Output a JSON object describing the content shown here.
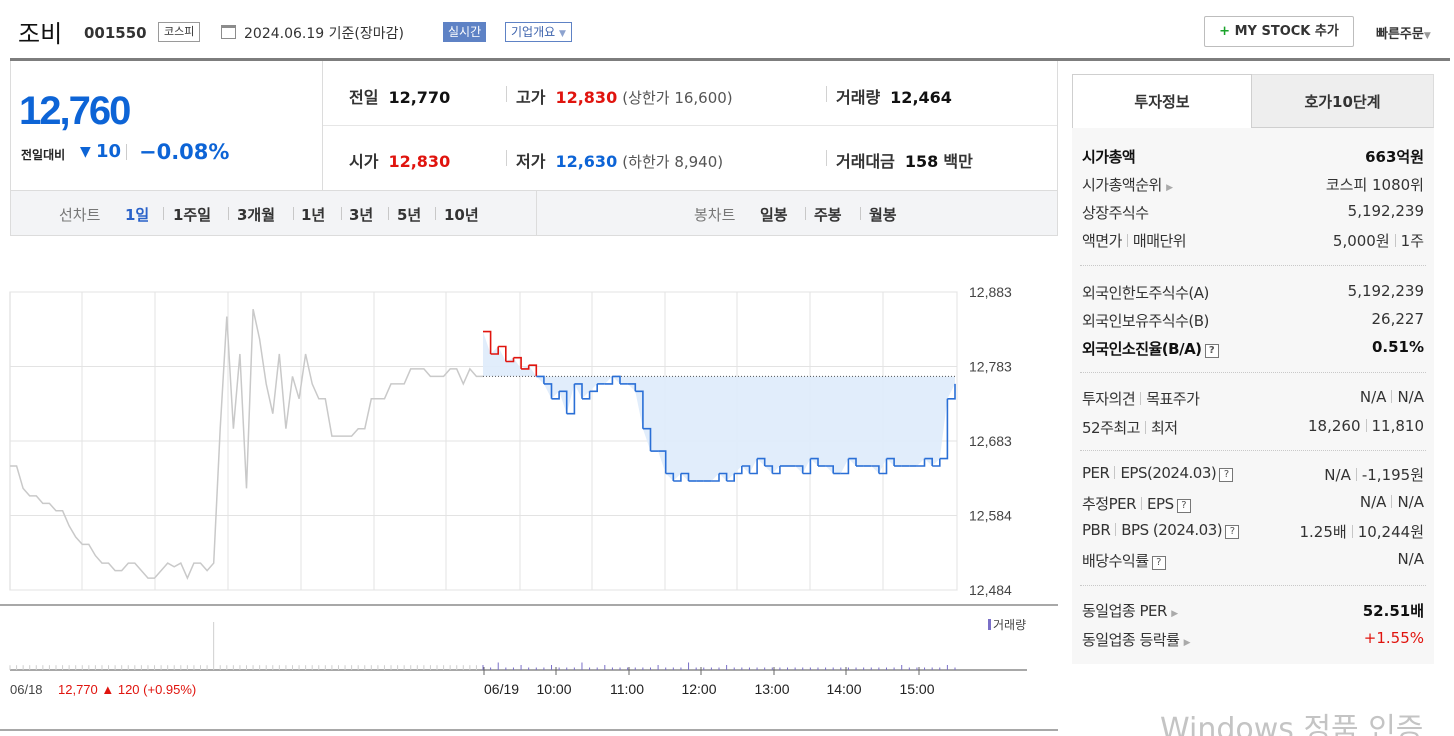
{
  "header": {
    "stock_name": "조비",
    "stock_code": "001550",
    "market_badge": "코스피",
    "date_text": "2024.06.19 기준(장마감)",
    "realtime_badge": "실시간",
    "company_overview": "기업개요",
    "my_stock_plus": "+",
    "my_stock_label": "MY STOCK 추가",
    "quick_order": "빠른주문"
  },
  "summary": {
    "current_price": "12,760",
    "change_label": "전일대비",
    "change_arrow": "▼",
    "change_value": "10",
    "change_percent": "−0.08%",
    "prev_close_label": "전일",
    "prev_close": "12,770",
    "high_label": "고가",
    "high": "12,830",
    "upper_limit": "(상한가 16,600)",
    "volume_label": "거래량",
    "volume": "12,464",
    "open_label": "시가",
    "open": "12,830",
    "low_label": "저가",
    "low": "12,630",
    "lower_limit": "(하한가 8,940)",
    "amount_label": "거래대금",
    "amount": "158",
    "amount_unit": "백만"
  },
  "toolbar": {
    "line_chart_label": "선차트",
    "line_periods": [
      "1일",
      "1주일",
      "3개월",
      "1년",
      "3년",
      "5년",
      "10년"
    ],
    "active_period": "1일",
    "candle_chart_label": "봉차트",
    "candle_periods": [
      "일봉",
      "주봉",
      "월봉"
    ]
  },
  "chart_data": {
    "type": "line",
    "title": "",
    "y_ticks": [
      "12,883",
      "12,783",
      "12,683",
      "12,584",
      "12,484"
    ],
    "ylim": [
      12484,
      12883
    ],
    "prev_close": 12770,
    "x_labels": [
      "06/19",
      "10:00",
      "11:00",
      "12:00",
      "13:00",
      "14:00",
      "15:00"
    ],
    "volume_legend": "거래량",
    "prev_day": {
      "date": "06/18",
      "close": "12,770",
      "arrow": "▲",
      "change": "120",
      "change_pct": "(+0.95%)",
      "series": [
        12650,
        12650,
        12620,
        12610,
        12610,
        12600,
        12600,
        12590,
        12590,
        12570,
        12555,
        12545,
        12545,
        12530,
        12520,
        12520,
        12510,
        12510,
        12520,
        12520,
        12510,
        12500,
        12500,
        12510,
        12520,
        12515,
        12520,
        12500,
        12520,
        12520,
        12510,
        12520,
        12700,
        12850,
        12700,
        12800,
        12620,
        12860,
        12820,
        12760,
        12720,
        12800,
        12700,
        12770,
        12740,
        12800,
        12760,
        12740,
        12740,
        12690,
        12690,
        12690,
        12690,
        12700,
        12700,
        12740,
        12740,
        12740,
        12760,
        12760,
        12760,
        12780,
        12780,
        12780,
        12770,
        12770,
        12770,
        12780,
        12780,
        12760,
        12780,
        12770,
        12770
      ]
    },
    "today": {
      "series": [
        12830,
        12800,
        12810,
        12790,
        12795,
        12780,
        12785,
        12770,
        12760,
        12740,
        12750,
        12720,
        12760,
        12740,
        12750,
        12760,
        12760,
        12770,
        12760,
        12760,
        12750,
        12700,
        12670,
        12670,
        12640,
        12630,
        12640,
        12630,
        12630,
        12630,
        12630,
        12640,
        12630,
        12640,
        12650,
        12640,
        12660,
        12650,
        12640,
        12650,
        12650,
        12650,
        12640,
        12660,
        12650,
        12650,
        12640,
        12640,
        12660,
        12650,
        12650,
        12650,
        12640,
        12660,
        12650,
        12650,
        12650,
        12650,
        12660,
        12650,
        12660,
        12740,
        12760
      ],
      "volume": [
        2,
        1,
        3,
        1,
        1,
        2,
        1,
        1,
        1,
        2,
        1,
        1,
        1,
        3,
        1,
        1,
        2,
        1,
        1,
        1,
        1,
        1,
        1,
        2,
        1,
        1,
        1,
        3,
        1,
        1,
        1,
        1,
        2,
        1,
        1,
        1,
        1,
        1,
        1,
        1,
        1,
        1,
        1,
        1,
        1,
        1,
        1,
        1,
        1,
        1,
        1,
        1,
        1,
        1,
        1,
        2,
        1,
        1,
        1,
        1,
        1,
        2,
        1
      ]
    },
    "prev_volume": [
      1,
      1,
      1,
      1,
      1,
      1,
      1,
      1,
      1,
      1,
      1,
      1,
      1,
      1,
      1,
      1,
      1,
      1,
      1,
      1,
      1,
      1,
      1,
      1,
      1,
      1,
      1,
      1,
      1,
      1,
      1,
      10,
      1,
      1,
      1,
      1,
      1,
      1,
      1,
      1,
      1,
      1,
      1,
      1,
      1,
      1,
      1,
      1,
      1,
      1,
      1,
      1,
      1,
      1,
      1,
      1,
      1,
      1,
      1,
      1,
      1,
      1,
      1,
      1,
      1,
      1,
      1,
      1,
      1,
      1,
      1,
      1,
      1
    ],
    "colors": {
      "up": "#e0140e",
      "down": "#2a6fd6",
      "prev_day_line": "#c9c9c9",
      "fill": "#deebfb"
    }
  },
  "invest_info": {
    "tab_active": "투자정보",
    "tab_other": "호가10단계",
    "items": [
      {
        "label": "시가총액",
        "value": "663억원"
      },
      {
        "label": "시가총액순위",
        "value": "코스피 1080위"
      },
      {
        "label": "상장주식수",
        "value": "5,192,239"
      },
      {
        "label": "액면가",
        "label2": "매매단위",
        "value": "5,000원",
        "value2": "1주"
      },
      {
        "label": "외국인한도주식수(A)",
        "value": "5,192,239"
      },
      {
        "label": "외국인보유주식수(B)",
        "value": "26,227"
      },
      {
        "label": "외국인소진율(B/A)",
        "value": "0.51%"
      },
      {
        "label": "투자의견",
        "label2": "목표주가",
        "value": "N/A",
        "value2": "N/A"
      },
      {
        "label": "52주최고",
        "label2": "최저",
        "value": "18,260",
        "value2": "11,810"
      },
      {
        "label": "PER",
        "label2": "EPS(2024.03)",
        "value": "N/A",
        "value2": "-1,195원"
      },
      {
        "label": "추정PER",
        "label2": "EPS",
        "value": "N/A",
        "value2": "N/A"
      },
      {
        "label": "PBR",
        "label2": "BPS (2024.03)",
        "value": "1.25배",
        "value2": "10,244원"
      },
      {
        "label": "배당수익률",
        "value": "N/A"
      },
      {
        "label": "동일업종 PER",
        "value": "52.51배"
      },
      {
        "label": "동일업종 등락률",
        "value": "+1.55%"
      }
    ]
  },
  "watermark": "Windows 정품 인증"
}
